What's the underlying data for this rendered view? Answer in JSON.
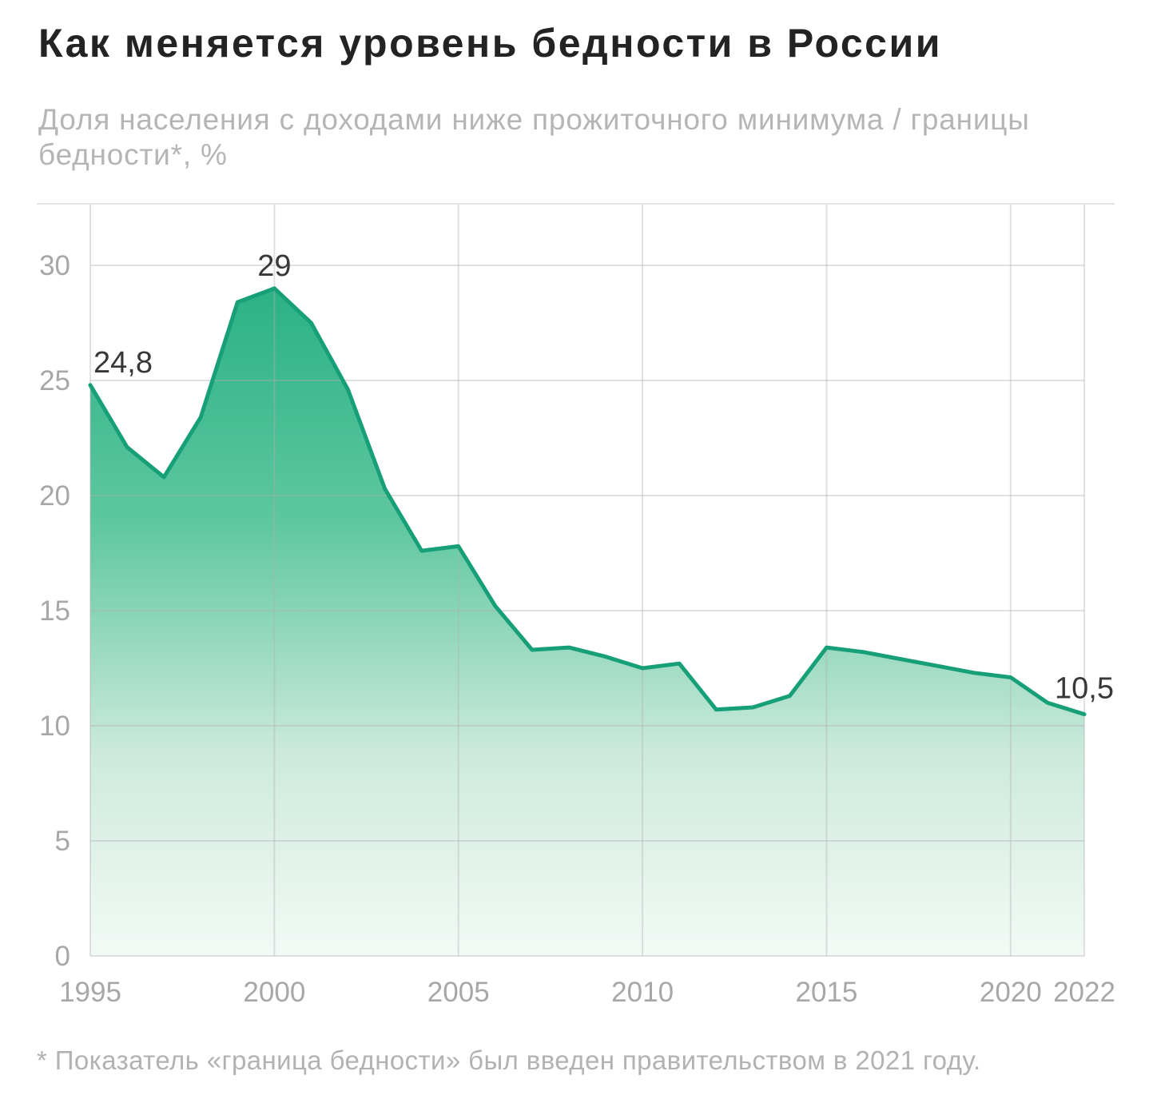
{
  "header": {
    "title": "Как меняется уровень бедности в России",
    "subtitle": "Доля населения с доходами ниже прожиточного минимума / границы\nбедности*, %"
  },
  "footnote": "* Показатель «граница бедности» был введен правительством в 2021 году.",
  "chart_data": {
    "type": "area",
    "title": "Как меняется уровень бедности в России",
    "subtitle": "Доля населения с доходами ниже прожиточного минимума / границы бедности*, %",
    "x": [
      1995,
      1996,
      1997,
      1998,
      1999,
      2000,
      2001,
      2002,
      2003,
      2004,
      2005,
      2006,
      2007,
      2008,
      2009,
      2010,
      2011,
      2012,
      2013,
      2014,
      2015,
      2016,
      2017,
      2018,
      2019,
      2020,
      2021,
      2022
    ],
    "values": [
      24.8,
      22.1,
      20.8,
      23.4,
      28.4,
      29.0,
      27.5,
      24.6,
      20.3,
      17.6,
      17.8,
      15.2,
      13.3,
      13.4,
      13.0,
      12.5,
      12.7,
      10.7,
      10.8,
      11.3,
      13.4,
      13.2,
      12.9,
      12.6,
      12.3,
      12.1,
      11.0,
      10.5
    ],
    "point_labels": [
      {
        "x": 1995,
        "label": "24,8"
      },
      {
        "x": 2000,
        "label": "29"
      },
      {
        "x": 2022,
        "label": "10,5"
      }
    ],
    "y_ticks": [
      0,
      5,
      10,
      15,
      20,
      25,
      30
    ],
    "x_ticks": [
      1995,
      2000,
      2005,
      2010,
      2015,
      2020,
      2022
    ],
    "ylim": [
      0,
      32.7
    ],
    "xlabel": "",
    "ylabel": "",
    "grid": true,
    "legend": "none",
    "line_color": "#17a078",
    "fill_gradient": [
      "#2bb185",
      "#5ec7a0",
      "#cdeadd",
      "#f3faf6"
    ],
    "grid_color": "rgba(175,175,175,0.38)",
    "axis_label_color": "#a7a7a7",
    "point_label_color": "#383838"
  }
}
